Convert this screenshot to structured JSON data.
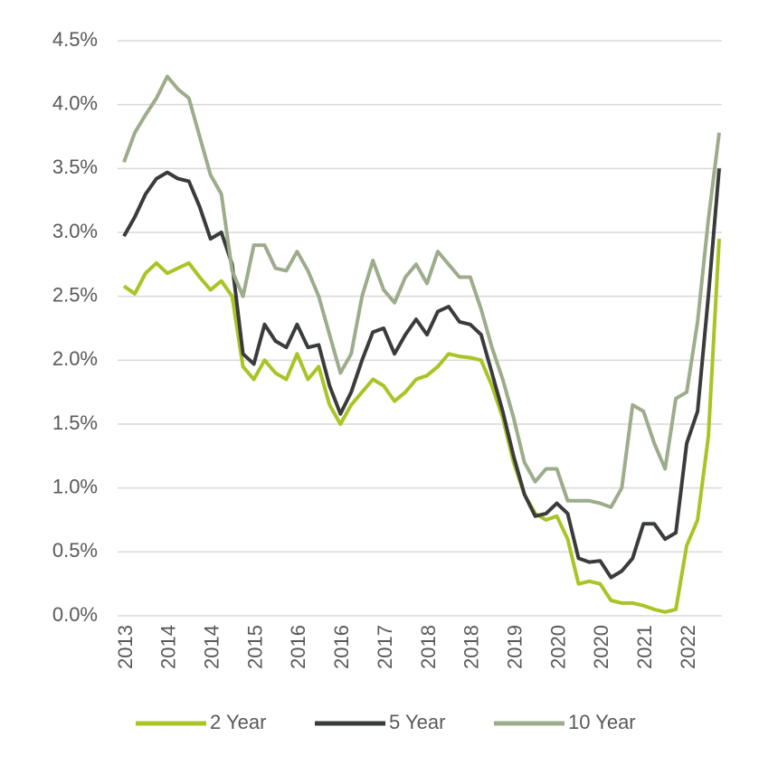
{
  "chart_data": {
    "type": "line",
    "categories": [
      "2013",
      null,
      null,
      null,
      "2014",
      null,
      null,
      null,
      "2014",
      null,
      null,
      null,
      "2015",
      null,
      null,
      null,
      "2016",
      null,
      null,
      null,
      "2016",
      null,
      null,
      null,
      "2017",
      null,
      null,
      null,
      "2018",
      null,
      null,
      null,
      "2018",
      null,
      null,
      null,
      "2019",
      null,
      null,
      null,
      "2020",
      null,
      null,
      null,
      "2020",
      null,
      null,
      null,
      "2021",
      null,
      null,
      null,
      "2022",
      null,
      null,
      null
    ],
    "series": [
      {
        "name": "2 Year",
        "color": "#a9c424",
        "values": [
          2.58,
          2.52,
          2.68,
          2.76,
          2.68,
          2.72,
          2.76,
          2.65,
          2.55,
          2.62,
          2.5,
          1.95,
          1.85,
          2.0,
          1.9,
          1.85,
          2.05,
          1.85,
          1.95,
          1.65,
          1.5,
          1.65,
          1.75,
          1.85,
          1.8,
          1.68,
          1.75,
          1.85,
          1.88,
          1.95,
          2.05,
          2.03,
          2.02,
          2.0,
          1.8,
          1.55,
          1.2,
          0.95,
          0.8,
          0.75,
          0.78,
          0.6,
          0.25,
          0.27,
          0.25,
          0.12,
          0.1,
          0.1,
          0.08,
          0.05,
          0.03,
          0.05,
          0.55,
          0.75,
          1.4,
          2.95
        ]
      },
      {
        "name": "5 Year",
        "color": "#3a3c3c",
        "values": [
          2.97,
          3.12,
          3.3,
          3.42,
          3.47,
          3.42,
          3.4,
          3.2,
          2.95,
          3.0,
          2.75,
          2.05,
          1.97,
          2.28,
          2.15,
          2.1,
          2.28,
          2.1,
          2.12,
          1.8,
          1.58,
          1.75,
          2.0,
          2.22,
          2.25,
          2.05,
          2.2,
          2.32,
          2.2,
          2.38,
          2.42,
          2.3,
          2.28,
          2.2,
          1.9,
          1.6,
          1.25,
          0.95,
          0.78,
          0.8,
          0.88,
          0.8,
          0.45,
          0.42,
          0.43,
          0.3,
          0.35,
          0.45,
          0.72,
          0.72,
          0.6,
          0.65,
          1.35,
          1.6,
          2.5,
          3.5
        ]
      },
      {
        "name": "10 Year",
        "color": "#9dac8b",
        "values": [
          3.55,
          3.78,
          3.92,
          4.05,
          4.22,
          4.12,
          4.05,
          3.75,
          3.45,
          3.3,
          2.7,
          2.5,
          2.9,
          2.9,
          2.72,
          2.7,
          2.85,
          2.7,
          2.5,
          2.2,
          1.9,
          2.05,
          2.5,
          2.78,
          2.55,
          2.45,
          2.65,
          2.75,
          2.6,
          2.85,
          2.75,
          2.65,
          2.65,
          2.4,
          2.1,
          1.85,
          1.55,
          1.2,
          1.05,
          1.15,
          1.15,
          0.9,
          0.9,
          0.9,
          0.88,
          0.85,
          1.0,
          1.65,
          1.6,
          1.35,
          1.15,
          1.7,
          1.75,
          2.3,
          3.1,
          3.78
        ]
      }
    ],
    "ylim": [
      0,
      4.5
    ],
    "yticks": [
      {
        "value": 0,
        "label": "0.0%"
      },
      {
        "value": 0.5,
        "label": "0.5%"
      },
      {
        "value": 1,
        "label": "1.0%"
      },
      {
        "value": 1.5,
        "label": "1.5%"
      },
      {
        "value": 2,
        "label": "2.0%"
      },
      {
        "value": 2.5,
        "label": "2.5%"
      },
      {
        "value": 3,
        "label": "3.0%"
      },
      {
        "value": 3.5,
        "label": "3.5%"
      },
      {
        "value": 4,
        "label": "4.0%"
      },
      {
        "value": 4.5,
        "label": "4.5%"
      }
    ],
    "grid": true,
    "legend": "bottom"
  }
}
